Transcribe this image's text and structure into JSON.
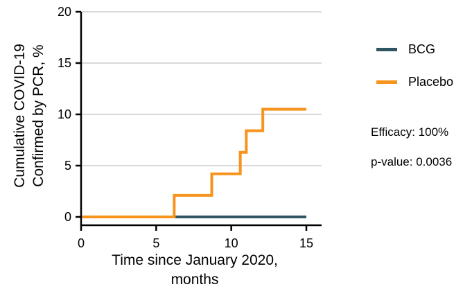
{
  "chart_data": {
    "type": "line",
    "step": true,
    "xlabel": "Time since January 2020, months",
    "ylabel": "Cumulative COVID-19 Confirmed by PCR, %",
    "xlim": [
      0,
      15
    ],
    "ylim": [
      0,
      20
    ],
    "xticks": [
      0,
      5,
      10,
      15
    ],
    "yticks": [
      0,
      5,
      10,
      15,
      20
    ],
    "grid": "horizontal",
    "legend_position": "right",
    "series": [
      {
        "name": "BCG",
        "color": "#2f5563",
        "x": [
          0,
          15
        ],
        "y": [
          0,
          0
        ]
      },
      {
        "name": "Placebo",
        "color": "#f7941d",
        "x": [
          0,
          6.2,
          8.7,
          10.6,
          11.0,
          12.1,
          15
        ],
        "y": [
          0,
          2.1,
          4.2,
          6.3,
          8.4,
          10.5,
          10.5
        ]
      }
    ],
    "annotations": [
      "Efficacy: 100%",
      "p-value: 0.0036"
    ]
  }
}
